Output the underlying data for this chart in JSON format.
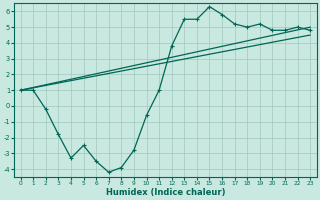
{
  "xlabel": "Humidex (Indice chaleur)",
  "background_color": "#c8e8e0",
  "grid_color": "#a0c8c0",
  "line_color": "#006655",
  "xlim": [
    -0.5,
    23.5
  ],
  "ylim": [
    -4.5,
    6.5
  ],
  "xticks": [
    0,
    1,
    2,
    3,
    4,
    5,
    6,
    7,
    8,
    9,
    10,
    11,
    12,
    13,
    14,
    15,
    16,
    17,
    18,
    19,
    20,
    21,
    22,
    23
  ],
  "yticks": [
    -4,
    -3,
    -2,
    -1,
    0,
    1,
    2,
    3,
    4,
    5,
    6
  ],
  "line1_x": [
    0,
    1,
    2,
    3,
    4,
    5,
    6,
    7,
    8,
    9,
    10,
    11,
    12,
    13,
    14,
    15,
    16,
    17,
    18,
    19,
    20,
    21,
    22,
    23
  ],
  "line1_y": [
    1.0,
    1.0,
    -0.2,
    -1.8,
    -3.3,
    -2.5,
    -3.5,
    -4.2,
    -3.9,
    -2.8,
    -0.6,
    1.0,
    3.8,
    5.5,
    5.5,
    6.3,
    5.8,
    5.2,
    5.0,
    5.2,
    4.8,
    4.8,
    5.0,
    4.8
  ],
  "line2_x": [
    0,
    23
  ],
  "line2_y": [
    1.0,
    5.0
  ],
  "line3_x": [
    0,
    23
  ],
  "line3_y": [
    1.0,
    4.5
  ]
}
